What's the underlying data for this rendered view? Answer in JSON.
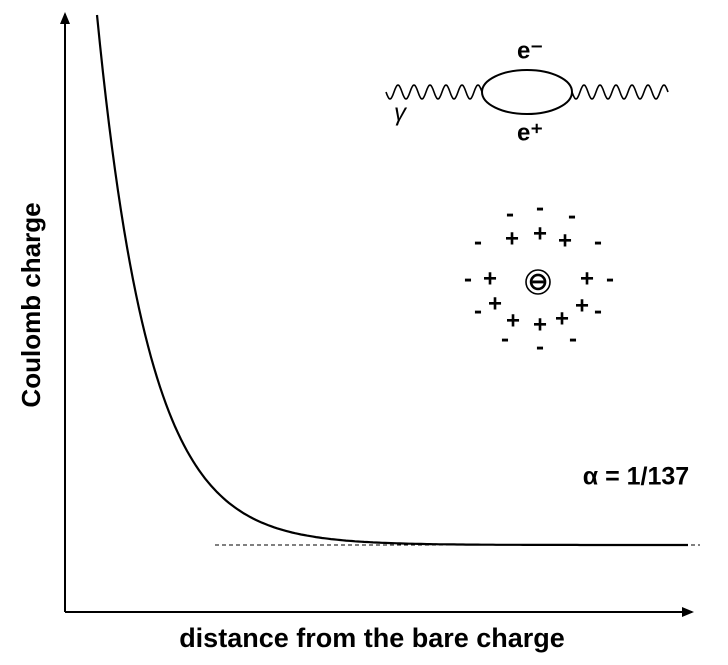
{
  "axes": {
    "y_label": "Coulomb charge",
    "x_label": "distance from the bare charge"
  },
  "annotation": "α = 1/137",
  "loop": {
    "photon": "γ",
    "electron": "e⁻",
    "positron": "e⁺"
  },
  "cloud": {
    "center": "⊖",
    "shell": [
      "-",
      "-",
      "-",
      "-",
      "+",
      "+",
      "+",
      "-",
      "-",
      "+",
      "+",
      "-",
      "-",
      "+",
      "+",
      "+",
      "+",
      "+",
      "-",
      "-",
      "-",
      "-"
    ]
  }
}
